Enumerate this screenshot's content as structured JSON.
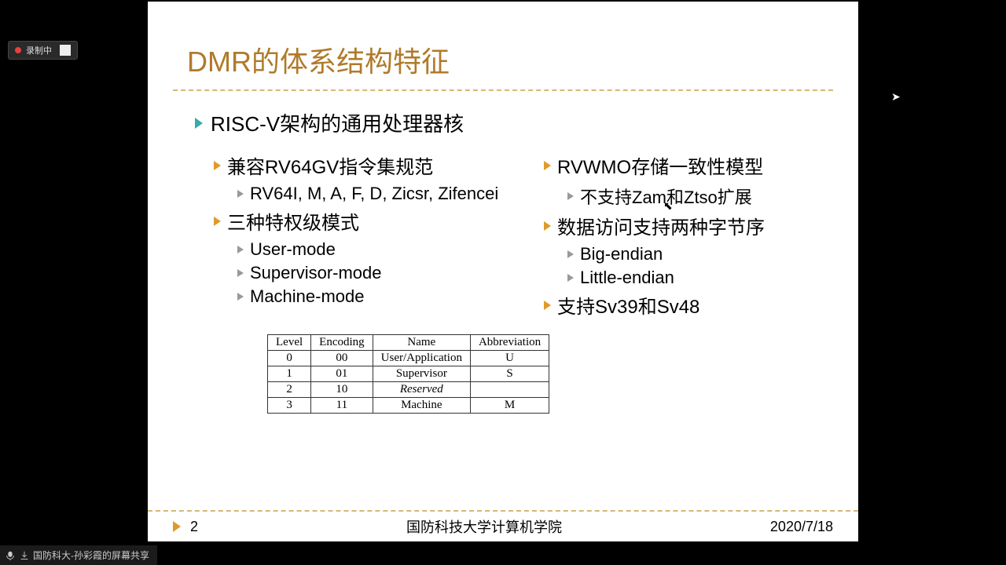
{
  "colors": {
    "black": "#000000",
    "white": "#ffffff",
    "title": "#b07a2a",
    "accent_teal": "#3aa8a8",
    "accent_orange": "#e09a2a",
    "accent_gray": "#999999",
    "divider": "#d4b878"
  },
  "recording": {
    "label": "录制中"
  },
  "slide": {
    "title": "DMR的体系结构特征",
    "main": "RISC-V架构的通用处理器核",
    "col_left": [
      {
        "level": 1,
        "text": "兼容RV64GV指令集规范"
      },
      {
        "level": 2,
        "text": "RV64I, M, A, F, D, Zicsr, Zifencei"
      },
      {
        "level": 1,
        "text": "三种特权级模式"
      },
      {
        "level": 2,
        "text": "User-mode"
      },
      {
        "level": 2,
        "text": "Supervisor-mode"
      },
      {
        "level": 2,
        "text": "Machine-mode"
      }
    ],
    "col_right": [
      {
        "level": 1,
        "text": "RVWMO存储一致性模型"
      },
      {
        "level": 2,
        "text": "不支持Zam和Ztso扩展"
      },
      {
        "level": 1,
        "text": "数据访问支持两种字节序"
      },
      {
        "level": 2,
        "text": "Big-endian"
      },
      {
        "level": 2,
        "text": "Little-endian"
      },
      {
        "level": 1,
        "text": "支持Sv39和Sv48"
      }
    ],
    "table": {
      "columns": [
        "Level",
        "Encoding",
        "Name",
        "Abbreviation"
      ],
      "rows": [
        [
          "0",
          "00",
          "User/Application",
          "U"
        ],
        [
          "1",
          "01",
          "Supervisor",
          "S"
        ],
        [
          "2",
          "10",
          "Reserved",
          ""
        ],
        [
          "3",
          "11",
          "Machine",
          "M"
        ]
      ],
      "italic_cells": [
        [
          2,
          2
        ]
      ]
    },
    "footer": {
      "page": "2",
      "org": "国防科技大学计算机学院",
      "date": "2020/7/18"
    }
  },
  "share": {
    "text": "国防科大-孙彩霞的屏幕共享"
  }
}
